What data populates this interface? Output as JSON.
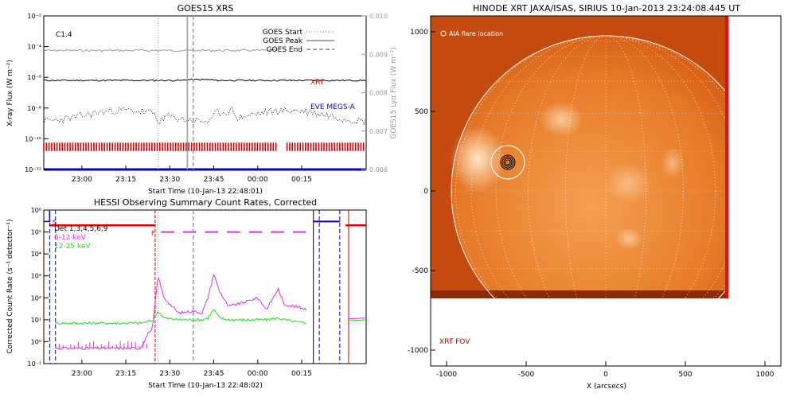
{
  "chart_data": [
    {
      "type": "line",
      "title": "GOES15 XRS",
      "xlabel": "Start Time (10-Jan-13 22:48:01)",
      "ylabel": "X-ray Flux (W m⁻²)",
      "y2label": "GOES15 Lyα Flux (W m⁻²)",
      "xticks": [
        "23:00",
        "23:15",
        "23:30",
        "23:45",
        "00:00",
        "00:15"
      ],
      "yticks": [
        "10⁻¹²",
        "10⁻¹⁰",
        "10⁻⁸",
        "10⁻⁶",
        "10⁻⁴",
        "10⁻²"
      ],
      "y2ticks": [
        "0.006",
        "0.007",
        "0.008",
        "0.009",
        "0.010"
      ],
      "annotation": "C1.4",
      "log_y": true,
      "ylim_log10": [
        -12,
        -2
      ],
      "y2lim": [
        0.006,
        0.01
      ],
      "xlim_min": [
        -13,
        97
      ],
      "series_labels": {
        "xrt": "XRT",
        "eve": "EVE MEGS-A"
      },
      "legend": [
        {
          "name": "GOES Start",
          "style": "dotted"
        },
        {
          "name": "GOES Peak",
          "style": "solid"
        },
        {
          "name": "GOES End",
          "style": "dashed"
        }
      ],
      "legend_position": "top-right",
      "vlines_min": {
        "start": 26,
        "peak": 36,
        "end": 38
      },
      "goes_long_log10": -6.2,
      "lyman_alpha_approx": 0.0091,
      "xrt_red_segments_min": [
        [
          -13,
          67
        ],
        [
          70,
          97
        ]
      ],
      "eve_level_log10": -12
    },
    {
      "type": "line",
      "title": "HESSI Observing Summary Count Rates, Corrected",
      "xlabel": "Start Time (10-Jan-13 22:48:02)",
      "ylabel": "Corrected Count Rate (s⁻¹ detector⁻¹)",
      "xticks": [
        "23:00",
        "23:15",
        "23:30",
        "23:45",
        "00:00",
        "00:15"
      ],
      "yticks": [
        "10⁻¹",
        "10⁰",
        "10¹",
        "10²",
        "10³",
        "10⁴",
        "10⁵",
        "10⁶"
      ],
      "log_y": true,
      "ylim_log10": [
        -1,
        6
      ],
      "xlim_min": [
        -13,
        97
      ],
      "legend": [
        {
          "name": "Det 1,3,4,5,6,9",
          "color": "#000000"
        },
        {
          "name": "6-12 keV",
          "color": "#e030e0"
        },
        {
          "name": "12-25 keV",
          "color": "#22dd22"
        }
      ],
      "flags": {
        "saa": "S",
        "flare": "F"
      },
      "series": [
        {
          "name": "6-12 keV",
          "x": [
            -9,
            0,
            10,
            20,
            23,
            24,
            26,
            28,
            33,
            38,
            41,
            43,
            45,
            47,
            50,
            55,
            60,
            63,
            67,
            69,
            73,
            77
          ],
          "y": [
            0.5,
            0.5,
            0.5,
            0.5,
            3.0,
            3.2,
            1000,
            100,
            20,
            25,
            20,
            100,
            1200,
            200,
            40,
            60,
            100,
            30,
            250,
            50,
            40,
            30
          ]
        },
        {
          "name": "12-25 keV",
          "x": [
            -9,
            0,
            10,
            20,
            23,
            24,
            26,
            28,
            33,
            38,
            41,
            43,
            45,
            47,
            50,
            55,
            60,
            63,
            67,
            69,
            73,
            77
          ],
          "y": [
            7,
            7,
            7,
            7,
            8.5,
            9,
            25,
            12,
            10,
            10,
            10,
            12,
            30,
            12,
            10,
            10,
            10,
            10,
            12,
            10,
            8,
            7
          ]
        }
      ]
    },
    {
      "type": "image",
      "title": "HINODE XRT JAXA/ISAS, SIRIUS 10-Jan-2013 23:24:08.445 UT",
      "xlabel": "X (arcsecs)",
      "xticks": [
        "-1000",
        "-500",
        "0",
        "500",
        "1000"
      ],
      "yticks": [
        "-1000",
        "-500",
        "0",
        "500",
        "1000"
      ],
      "xlim": [
        -1100,
        1100
      ],
      "ylim": [
        -1100,
        1100
      ],
      "fov_x": [
        -1100,
        760
      ],
      "fov_y": [
        -670,
        1100
      ],
      "solar_radius": 975,
      "aia_flare_location": [
        -615,
        180
      ],
      "labels": {
        "aia": "AIA flare location",
        "fov": "XRT FOV"
      }
    }
  ],
  "colors": {
    "goes": "#000000",
    "lyman": "#999999",
    "xrt": "#dd0000",
    "eve": "#0000cc",
    "hessi_low": "#e030e0",
    "hessi_high": "#22dd22",
    "hessi_attenuator": "#0000cc",
    "xrt_bg": "#d85a10",
    "frame_red": "#ff0000"
  }
}
